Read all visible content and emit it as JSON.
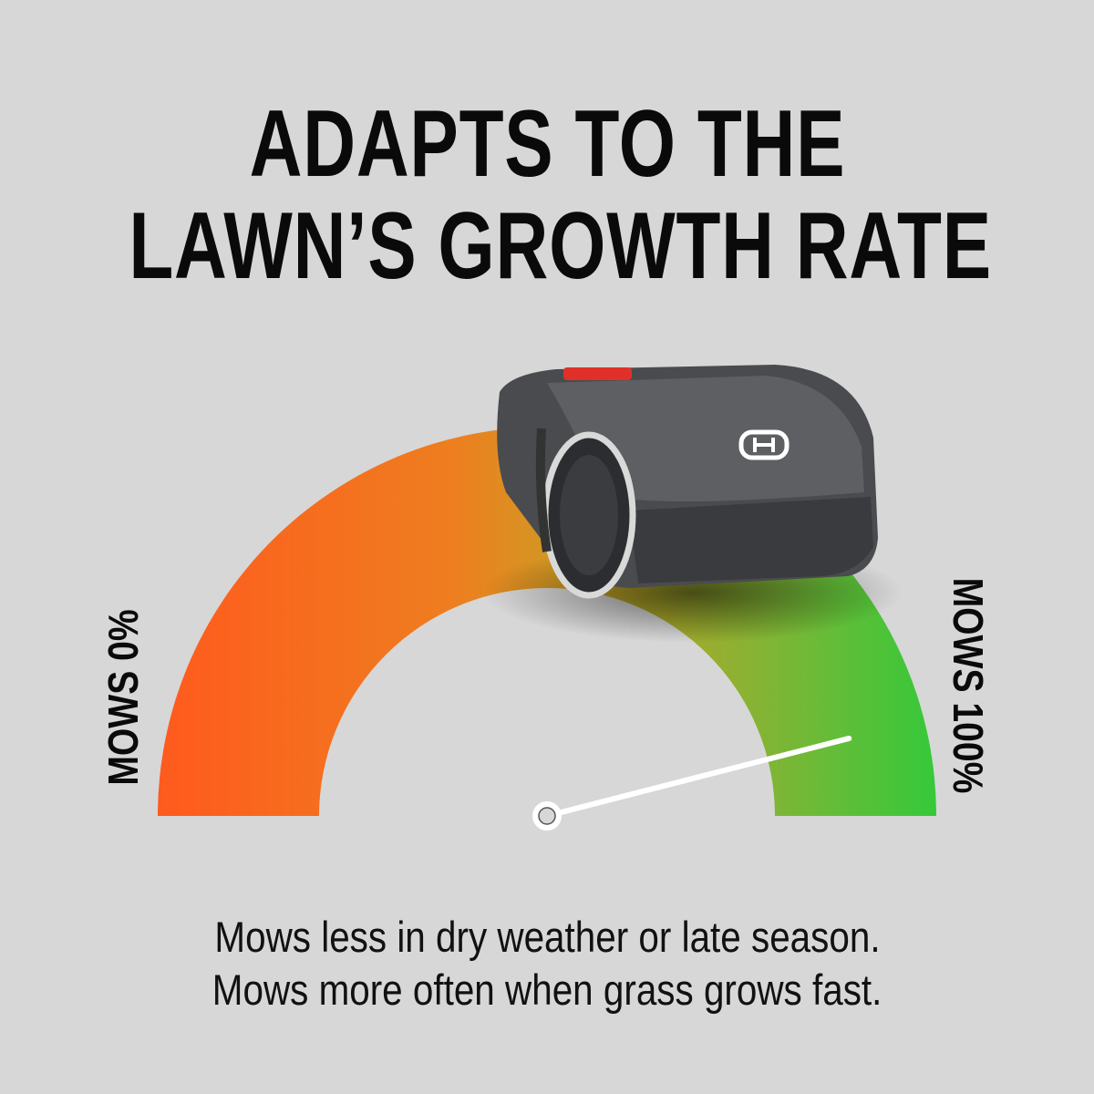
{
  "headline": {
    "line1": "ADAPTS TO THE",
    "line2": "LAWN’S GROWTH RATE"
  },
  "gauge": {
    "min_label": "MOWS 0%",
    "max_label": "MOWS 100%",
    "needle_value_percent": 92,
    "colors": {
      "low": "#ff5a1e",
      "mid": "#d9951f",
      "high": "#38c93a",
      "needle": "#ffffff"
    }
  },
  "product": {
    "name": "robotic-lawn-mower",
    "logo": "Husqvarna crown H"
  },
  "caption": {
    "line1": "Mows less in dry weather or late season.",
    "line2": "Mows more often when grass grows fast."
  }
}
